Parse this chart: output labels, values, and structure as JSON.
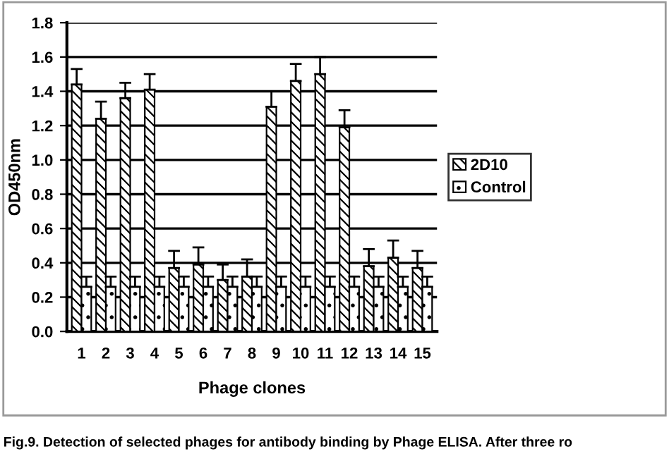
{
  "chart_data": {
    "type": "bar",
    "xlabel": "Phage clones",
    "ylabel": "OD450nm",
    "categories": [
      "1",
      "2",
      "3",
      "4",
      "5",
      "6",
      "7",
      "8",
      "9",
      "10",
      "11",
      "12",
      "13",
      "14",
      "15"
    ],
    "series": [
      {
        "name": "2D10",
        "color": "#000000",
        "values": [
          1.44,
          1.24,
          1.36,
          1.41,
          0.37,
          0.39,
          0.3,
          0.32,
          1.31,
          1.46,
          1.5,
          1.19,
          0.38,
          0.43,
          0.37
        ],
        "errors": [
          0.09,
          0.1,
          0.09,
          0.09,
          0.1,
          0.1,
          0.09,
          0.1,
          0.09,
          0.1,
          0.1,
          0.1,
          0.1,
          0.1,
          0.1
        ]
      },
      {
        "name": "Control",
        "color": "#000000",
        "values": [
          0.26,
          0.26,
          0.26,
          0.26,
          0.26,
          0.26,
          0.26,
          0.26,
          0.26,
          0.26,
          0.26,
          0.26,
          0.26,
          0.26,
          0.26
        ],
        "errors": [
          0.06,
          0.06,
          0.06,
          0.06,
          0.06,
          0.06,
          0.06,
          0.06,
          0.06,
          0.06,
          0.06,
          0.06,
          0.06,
          0.06,
          0.06
        ]
      }
    ],
    "ylim": [
      0,
      1.8
    ],
    "yticks": [
      {
        "value": 0,
        "label": "0.0"
      },
      0.2,
      0.4,
      0.6,
      0.8,
      {
        "value": 1,
        "label": "1.0"
      },
      1.2,
      1.4,
      1.6,
      1.8
    ],
    "grid": "y",
    "legend": "right",
    "annotations": [
      "Fig.9. Detection of selected phages for antibody binding by Phage ELISA. After three ro"
    ]
  }
}
